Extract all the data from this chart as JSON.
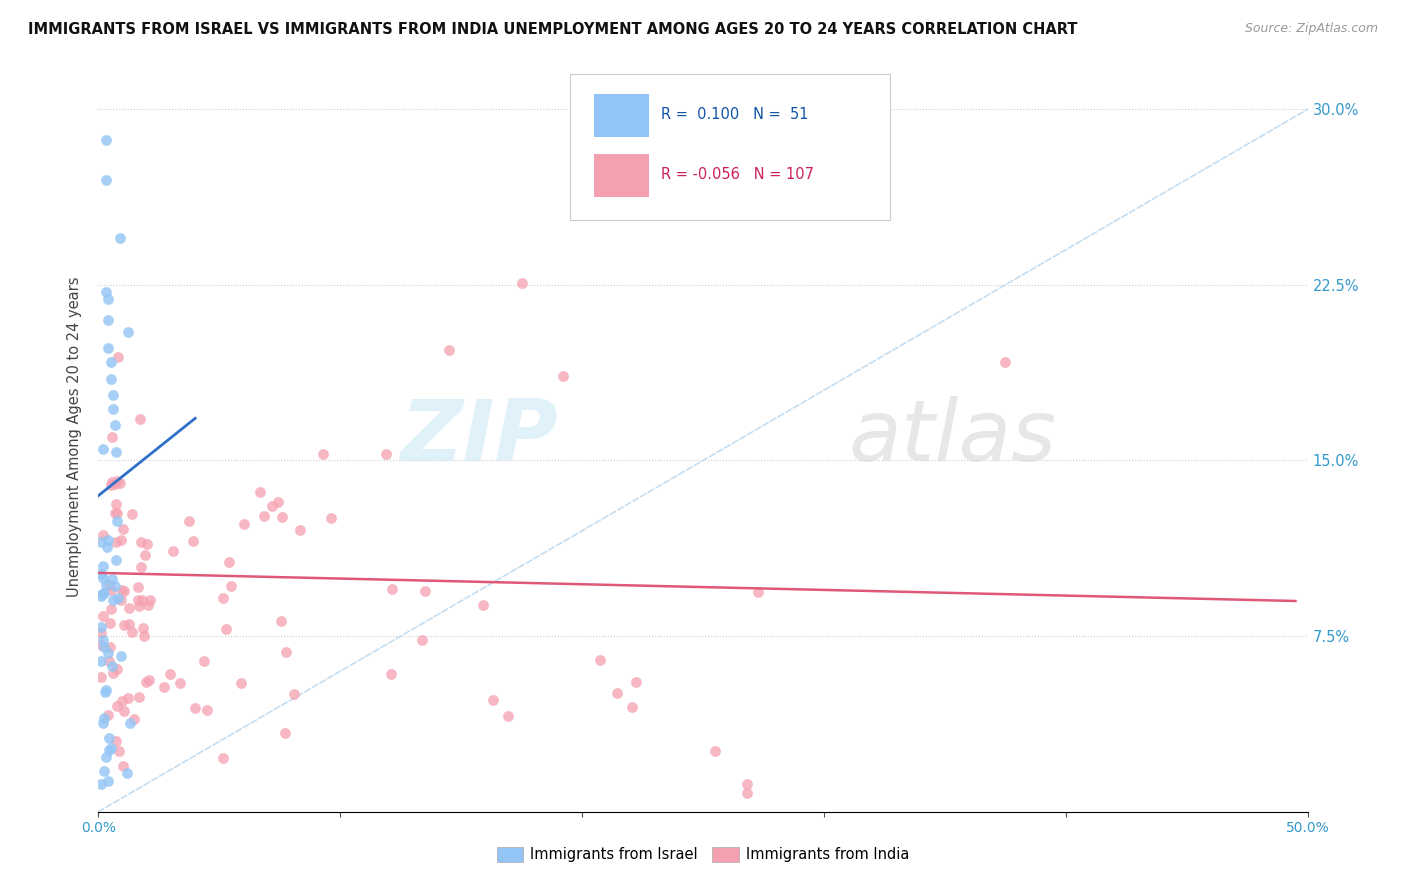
{
  "title": "IMMIGRANTS FROM ISRAEL VS IMMIGRANTS FROM INDIA UNEMPLOYMENT AMONG AGES 20 TO 24 YEARS CORRELATION CHART",
  "source": "Source: ZipAtlas.com",
  "ylabel": "Unemployment Among Ages 20 to 24 years",
  "xlim": [
    0.0,
    0.5
  ],
  "ylim": [
    0.0,
    0.32
  ],
  "xticks": [
    0.0,
    0.1,
    0.2,
    0.3,
    0.4,
    0.5
  ],
  "xticklabels": [
    "0.0%",
    "",
    "",
    "",
    "",
    "50.0%"
  ],
  "yticks_right": [
    0.075,
    0.15,
    0.225,
    0.3
  ],
  "ytick_right_labels": [
    "7.5%",
    "15.0%",
    "22.5%",
    "30.0%"
  ],
  "israel_R": 0.1,
  "israel_N": 51,
  "india_R": -0.056,
  "india_N": 107,
  "israel_color": "#92c5f5",
  "india_color": "#f5a0b0",
  "israel_line_color": "#3070c8",
  "india_line_color": "#e05878",
  "dashed_line_color": "#b8d8f0",
  "watermark_zip": "ZIP",
  "watermark_atlas": "atlas",
  "legend_israel_text": "R =  0.100   N =  51",
  "legend_india_text": "R = -0.056   N = 107",
  "bottom_legend_israel": "Immigrants from Israel",
  "bottom_legend_india": "Immigrants from India"
}
